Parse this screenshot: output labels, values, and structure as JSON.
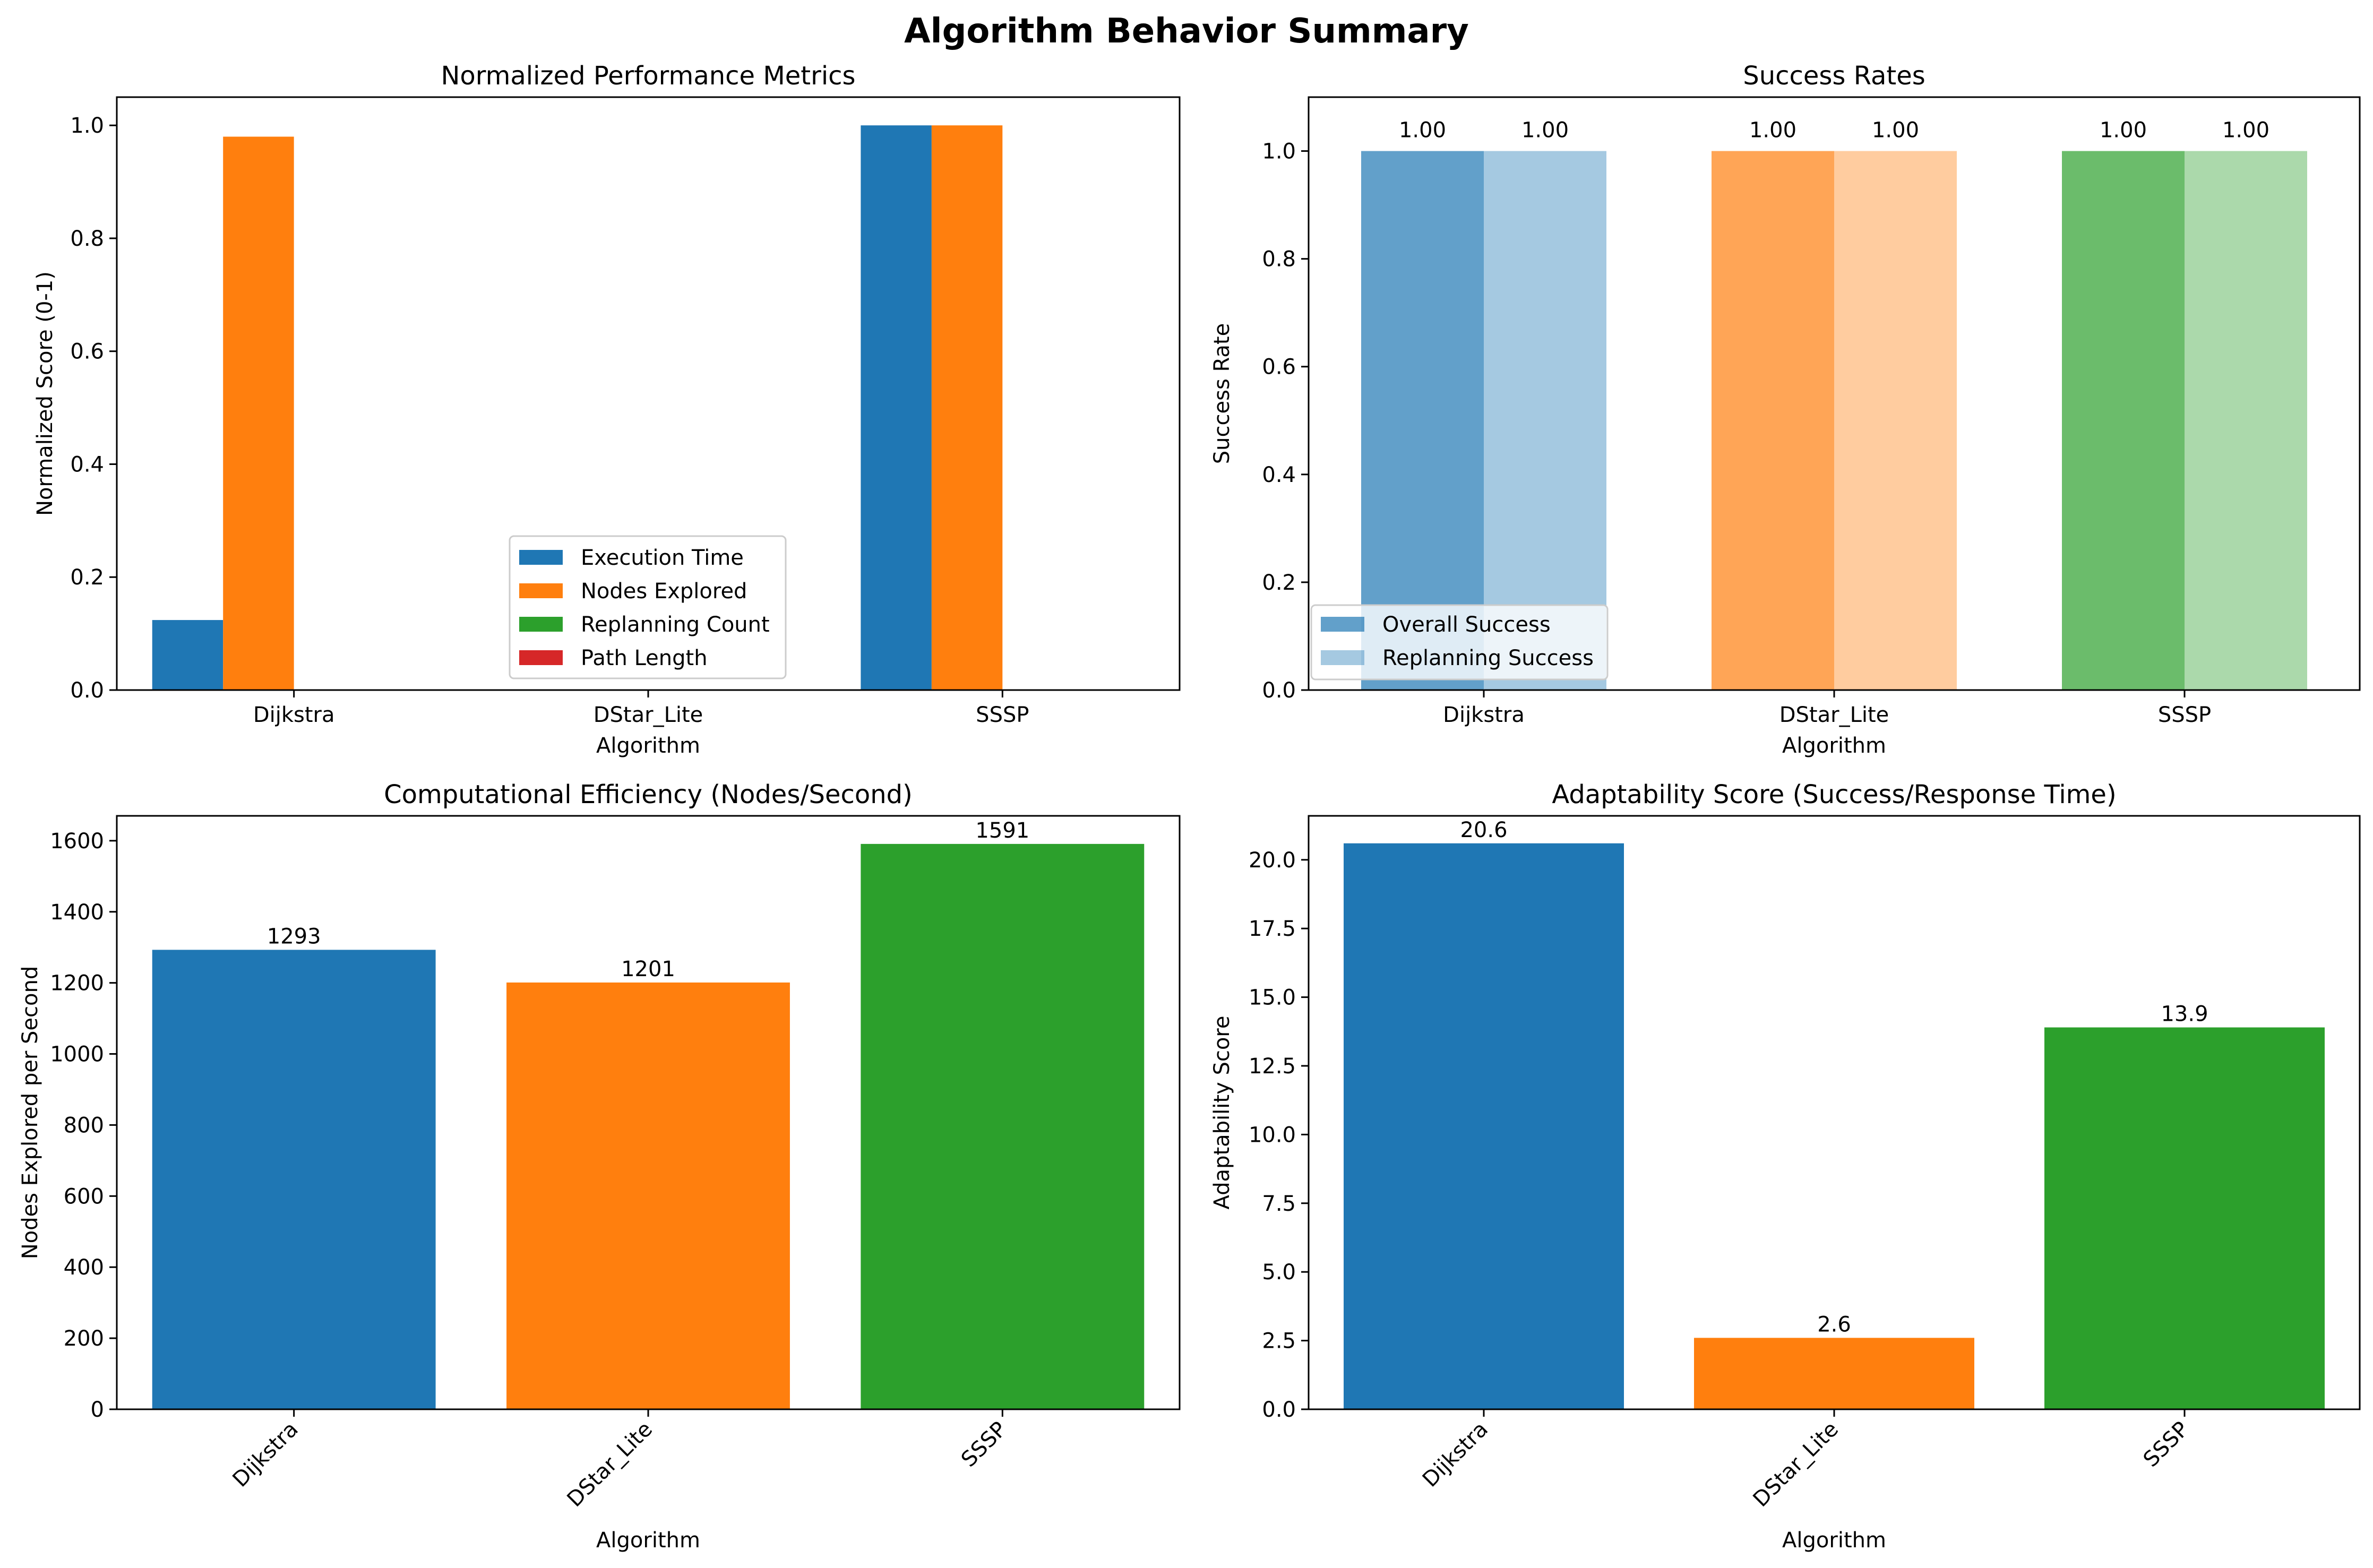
{
  "title": "Algorithm Behavior Summary",
  "colors": {
    "blue": "#1f77b4",
    "orange": "#ff7f0e",
    "green": "#2ca02c",
    "red": "#d62728"
  },
  "chart_data": [
    {
      "type": "bar",
      "title": "Normalized Performance Metrics",
      "xlabel": "Algorithm",
      "ylabel": "Normalized Score (0-1)",
      "categories": [
        "Dijkstra",
        "DStar_Lite",
        "SSSP"
      ],
      "ylim": [
        0,
        1.05
      ],
      "yticks": [
        "0.0",
        "0.2",
        "0.4",
        "0.6",
        "0.8",
        "1.0"
      ],
      "legend_position": "lower center",
      "series": [
        {
          "name": "Execution Time",
          "color": "#1f77b4",
          "values": [
            0.124,
            0,
            1.0
          ]
        },
        {
          "name": "Nodes Explored",
          "color": "#ff7f0e",
          "values": [
            0.98,
            0,
            1.0
          ]
        },
        {
          "name": "Replanning Count",
          "color": "#2ca02c",
          "values": [
            0,
            0,
            0
          ]
        },
        {
          "name": "Path Length",
          "color": "#d62728",
          "values": [
            0,
            0,
            0
          ]
        }
      ]
    },
    {
      "type": "bar",
      "title": "Success Rates",
      "xlabel": "Algorithm",
      "ylabel": "Success Rate",
      "categories": [
        "Dijkstra",
        "DStar_Lite",
        "SSSP"
      ],
      "ylim": [
        0,
        1.1
      ],
      "yticks": [
        "0.0",
        "0.2",
        "0.4",
        "0.6",
        "0.8",
        "1.0"
      ],
      "legend_position": "lower left",
      "series": [
        {
          "name": "Overall Success",
          "values": [
            1.0,
            1.0,
            1.0
          ],
          "labels": [
            "1.00",
            "1.00",
            "1.00"
          ],
          "alpha": 0.7
        },
        {
          "name": "Replanning Success",
          "values": [
            1.0,
            1.0,
            1.0
          ],
          "labels": [
            "1.00",
            "1.00",
            "1.00"
          ],
          "alpha": 0.4
        }
      ],
      "bar_colors": [
        "#1f77b4",
        "#ff7f0e",
        "#2ca02c"
      ]
    },
    {
      "type": "bar",
      "title": "Computational Efficiency (Nodes/Second)",
      "xlabel": "Algorithm",
      "ylabel": "Nodes Explored per Second",
      "categories": [
        "Dijkstra",
        "DStar_Lite",
        "SSSP"
      ],
      "values": [
        1293,
        1201,
        1591
      ],
      "value_labels": [
        "1293",
        "1201",
        "1591"
      ],
      "ylim": [
        0,
        1670
      ],
      "yticks": [
        "0",
        "200",
        "400",
        "600",
        "800",
        "1000",
        "1200",
        "1400",
        "1600"
      ],
      "bar_colors": [
        "#1f77b4",
        "#ff7f0e",
        "#2ca02c"
      ],
      "xtick_rotation": 45
    },
    {
      "type": "bar",
      "title": "Adaptability Score (Success/Response Time)",
      "xlabel": "Algorithm",
      "ylabel": "Adaptability Score",
      "categories": [
        "Dijkstra",
        "DStar_Lite",
        "SSSP"
      ],
      "values": [
        20.6,
        2.6,
        13.9
      ],
      "value_labels": [
        "20.6",
        "2.6",
        "13.9"
      ],
      "ylim": [
        0,
        21.6
      ],
      "yticks": [
        "0.0",
        "2.5",
        "5.0",
        "7.5",
        "10.0",
        "12.5",
        "15.0",
        "17.5",
        "20.0"
      ],
      "bar_colors": [
        "#1f77b4",
        "#ff7f0e",
        "#2ca02c"
      ],
      "xtick_rotation": 45
    }
  ]
}
